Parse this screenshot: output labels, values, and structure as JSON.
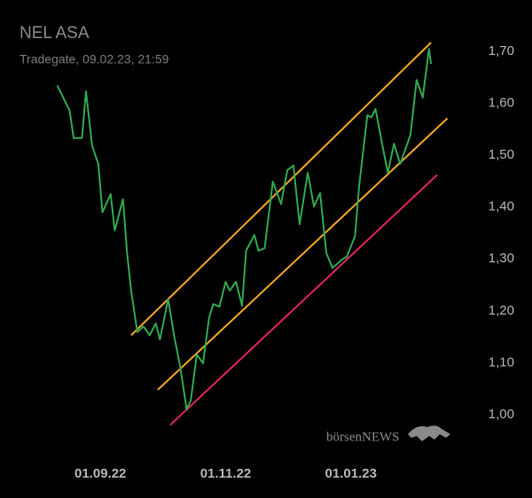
{
  "chart_data": {
    "type": "line",
    "title": "NEL ASA",
    "subtitle": "Tradegate, 09.02.23, 21:59",
    "watermark": "börsenNEWS",
    "x": [
      "2022-08-11",
      "2022-08-17",
      "2022-08-19",
      "2022-08-23",
      "2022-08-25",
      "2022-08-28",
      "2022-08-31",
      "2022-09-02",
      "2022-09-06",
      "2022-09-08",
      "2022-09-12",
      "2022-09-14",
      "2022-09-16",
      "2022-09-19",
      "2022-09-22",
      "2022-09-25",
      "2022-09-28",
      "2022-09-30",
      "2022-10-04",
      "2022-10-07",
      "2022-10-10",
      "2022-10-13",
      "2022-10-15",
      "2022-10-18",
      "2022-10-21",
      "2022-10-24",
      "2022-10-26",
      "2022-10-29",
      "2022-11-01",
      "2022-11-03",
      "2022-11-06",
      "2022-11-09",
      "2022-11-11",
      "2022-11-15",
      "2022-11-17",
      "2022-11-20",
      "2022-11-24",
      "2022-11-28",
      "2022-12-01",
      "2022-12-04",
      "2022-12-07",
      "2022-12-11",
      "2022-12-14",
      "2022-12-17",
      "2022-12-20",
      "2022-12-23",
      "2022-12-28",
      "2022-12-30",
      "2023-01-03",
      "2023-01-05",
      "2023-01-09",
      "2023-01-11",
      "2023-01-13",
      "2023-01-16",
      "2023-01-19",
      "2023-01-22",
      "2023-01-25",
      "2023-01-30",
      "2023-02-02",
      "2023-02-05",
      "2023-02-08",
      "2023-02-09"
    ],
    "series": [
      {
        "color": "#2fa84f",
        "values": [
          1.634,
          1.586,
          1.533,
          1.533,
          1.623,
          1.518,
          1.483,
          1.39,
          1.425,
          1.355,
          1.415,
          1.312,
          1.239,
          1.159,
          1.17,
          1.153,
          1.176,
          1.145,
          1.222,
          1.15,
          1.09,
          1.01,
          1.027,
          1.116,
          1.099,
          1.188,
          1.213,
          1.208,
          1.256,
          1.239,
          1.256,
          1.21,
          1.316,
          1.346,
          1.316,
          1.321,
          1.449,
          1.406,
          1.471,
          1.48,
          1.367,
          1.466,
          1.401,
          1.427,
          1.312,
          1.283,
          1.3,
          1.304,
          1.344,
          1.44,
          1.577,
          1.573,
          1.589,
          1.526,
          1.466,
          1.522,
          1.483,
          1.539,
          1.645,
          1.611,
          1.705,
          1.676
        ]
      }
    ],
    "trend_lines": [
      {
        "color": "#f5a623",
        "x": [
          "2022-09-16",
          "2023-02-09"
        ],
        "values": [
          1.153,
          1.717
        ]
      },
      {
        "color": "#f5a623",
        "x": [
          "2022-09-29",
          "2023-02-17"
        ],
        "values": [
          1.048,
          1.571
        ]
      },
      {
        "color": "#e0245e",
        "x": [
          "2022-10-05",
          "2023-02-12"
        ],
        "values": [
          0.98,
          1.462
        ]
      }
    ],
    "xlim": [
      "2022-08-01",
      "2023-02-23"
    ],
    "xticks": [
      {
        "value": "2022-09-01",
        "label": "01.09.22"
      },
      {
        "value": "2022-11-01",
        "label": "01.11.22"
      },
      {
        "value": "2023-01-01",
        "label": "01.01.23"
      }
    ],
    "ylim": [
      0.96,
      1.75
    ],
    "yticks": [
      {
        "value": 1.0,
        "label": "1,00"
      },
      {
        "value": 1.1,
        "label": "1,10"
      },
      {
        "value": 1.2,
        "label": "1,20"
      },
      {
        "value": 1.3,
        "label": "1,30"
      },
      {
        "value": 1.4,
        "label": "1,40"
      },
      {
        "value": 1.5,
        "label": "1,50"
      },
      {
        "value": 1.6,
        "label": "1,60"
      },
      {
        "value": 1.7,
        "label": "1,70"
      }
    ]
  }
}
